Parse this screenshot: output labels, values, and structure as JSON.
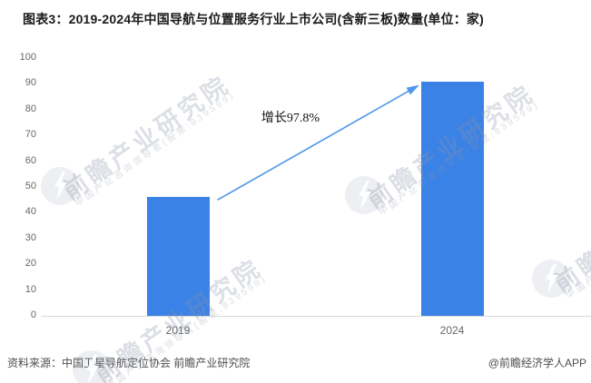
{
  "title": "图表3：2019-2024年中国导航与位置服务行业上市公司(含新三板)数量(单位：家)",
  "footer": {
    "source": "资料来源：中国卫星导航定位协会 前瞻产业研究院",
    "credit": "@前瞻经济学人APP"
  },
  "watermark": {
    "brand": "前瞻产业研究院",
    "tagline": "中国产业咨询领导者(股票:839599)"
  },
  "colors": {
    "bar": "#3B82E6",
    "arrow": "#4E97EA",
    "axis_line": "#d8d8d8",
    "tick_text": "#666666",
    "title_text": "#1a1a1a",
    "footer_text": "#4d4d4d"
  },
  "chart_data": {
    "type": "bar",
    "title": "图表3：2019-2024年中国导航与位置服务行业上市公司(含新三板)数量(单位：家)",
    "categories": [
      "2019",
      "2024"
    ],
    "values": [
      46,
      91
    ],
    "ylim": [
      0,
      100
    ],
    "yticks": [
      0,
      10,
      20,
      30,
      40,
      50,
      60,
      70,
      80,
      90,
      100
    ],
    "xlabel": "",
    "ylabel": "",
    "grid": false,
    "legend": null,
    "annotation": {
      "text": "增长97.8%"
    }
  }
}
